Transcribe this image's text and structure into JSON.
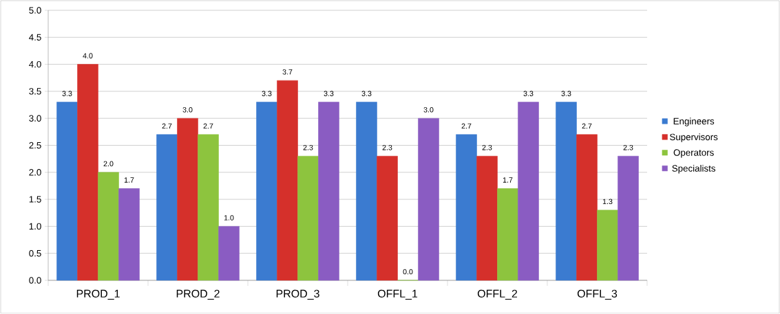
{
  "chart_data": {
    "type": "bar",
    "categories": [
      "PROD_1",
      "PROD_2",
      "PROD_3",
      "OFFL_1",
      "OFFL_2",
      "OFFL_3"
    ],
    "series": [
      {
        "name": "Engineers",
        "color": "#3b7bd0",
        "values": [
          3.3,
          2.7,
          3.3,
          3.3,
          2.7,
          3.3
        ],
        "value_labels": [
          "3.3",
          "2.7",
          "3.3",
          "3.3",
          "2.7",
          "3.3"
        ]
      },
      {
        "name": "Supervisors",
        "color": "#d5302b",
        "values": [
          4.0,
          3.0,
          3.7,
          2.3,
          2.3,
          2.7
        ],
        "value_labels": [
          "4.0",
          "3.0",
          "3.7",
          "2.3",
          "2.3",
          "2.7"
        ]
      },
      {
        "name": "Operators",
        "color": "#8dc43e",
        "values": [
          2.0,
          2.7,
          2.3,
          0.0,
          1.7,
          1.3
        ],
        "value_labels": [
          "2.0",
          "2.7",
          "2.3",
          "0.0",
          "1.7",
          "1.3"
        ]
      },
      {
        "name": "Specialists",
        "color": "#8a5cc2",
        "values": [
          1.7,
          1.0,
          3.3,
          3.0,
          3.3,
          2.3
        ],
        "value_labels": [
          "1.7",
          "1.0",
          "3.3",
          "3.0",
          "3.3",
          "2.3"
        ]
      }
    ],
    "ylim": [
      0,
      5
    ],
    "yticks": [
      {
        "value": 0,
        "label": "0.0"
      },
      {
        "value": 0.5,
        "label": "0.5"
      },
      {
        "value": 1,
        "label": "1.0"
      },
      {
        "value": 1.5,
        "label": "1.5"
      },
      {
        "value": 2,
        "label": "2.0"
      },
      {
        "value": 2.5,
        "label": "2.5"
      },
      {
        "value": 3,
        "label": "3.0"
      },
      {
        "value": 3.5,
        "label": "3.5"
      },
      {
        "value": 4,
        "label": "4.0"
      },
      {
        "value": 4.5,
        "label": "4.5"
      },
      {
        "value": 5,
        "label": "5.0"
      }
    ],
    "grid": "y",
    "legend": "right"
  }
}
